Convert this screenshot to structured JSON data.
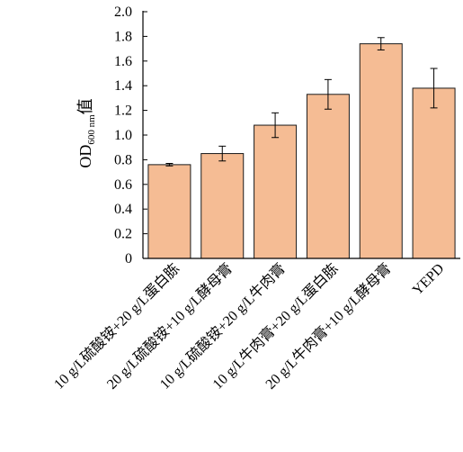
{
  "chart_data": {
    "type": "bar",
    "categories": [
      "10 g/L硫酸铵+20 g/L蛋白胨",
      "20 g/L硫酸铵+10 g/L酵母膏",
      "10 g/L硫酸铵+20 g/L牛肉膏",
      "10 g/L牛肉膏+20 g/L蛋白胨",
      "20 g/L牛肉膏+10 g/L酵母膏",
      "YEPD"
    ],
    "values": [
      0.76,
      0.85,
      1.08,
      1.33,
      1.74,
      1.38
    ],
    "errors": [
      0.01,
      0.06,
      0.1,
      0.12,
      0.05,
      0.16
    ],
    "ylim": [
      0,
      2.0
    ],
    "yticks": [
      "0",
      "0.2",
      "0.4",
      "0.6",
      "0.8",
      "1.0",
      "1.2",
      "1.4",
      "1.6",
      "1.8",
      "2.0"
    ],
    "ylabel": {
      "main": "OD",
      "sub": "600 nm",
      "suffix": "值"
    },
    "xlabel": "",
    "grid": false,
    "bar_color": "#f5bc94",
    "bar_edge": "#1a1a1a"
  }
}
